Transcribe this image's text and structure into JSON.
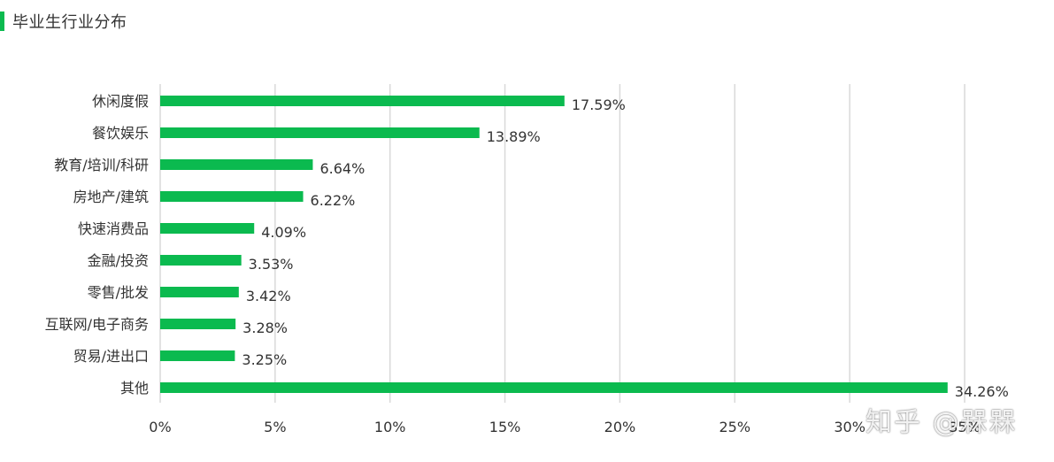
{
  "header": {
    "title": "毕业生行业分布"
  },
  "watermark": "知乎 @槑槑",
  "chart_data": {
    "type": "bar",
    "orientation": "horizontal",
    "title": "毕业生行业分布",
    "categories": [
      "休闲度假",
      "餐饮娱乐",
      "教育/培训/科研",
      "房地产/建筑",
      "快速消费品",
      "金融/投资",
      "零售/批发",
      "互联网/电子商务",
      "贸易/进出口",
      "其他"
    ],
    "values": [
      17.59,
      13.89,
      6.64,
      6.22,
      4.09,
      3.53,
      3.42,
      3.28,
      3.25,
      34.26
    ],
    "value_labels": [
      "17.59%",
      "13.89%",
      "6.64%",
      "6.22%",
      "4.09%",
      "3.53%",
      "3.42%",
      "3.28%",
      "3.25%",
      "34.26%"
    ],
    "x_ticks": [
      "0%",
      "5%",
      "10%",
      "15%",
      "20%",
      "25%",
      "30%",
      "35%"
    ],
    "xlim": [
      0,
      35
    ],
    "grid": true,
    "bar_color": "#0bba4f",
    "grid_color": "#d9d9d9"
  }
}
